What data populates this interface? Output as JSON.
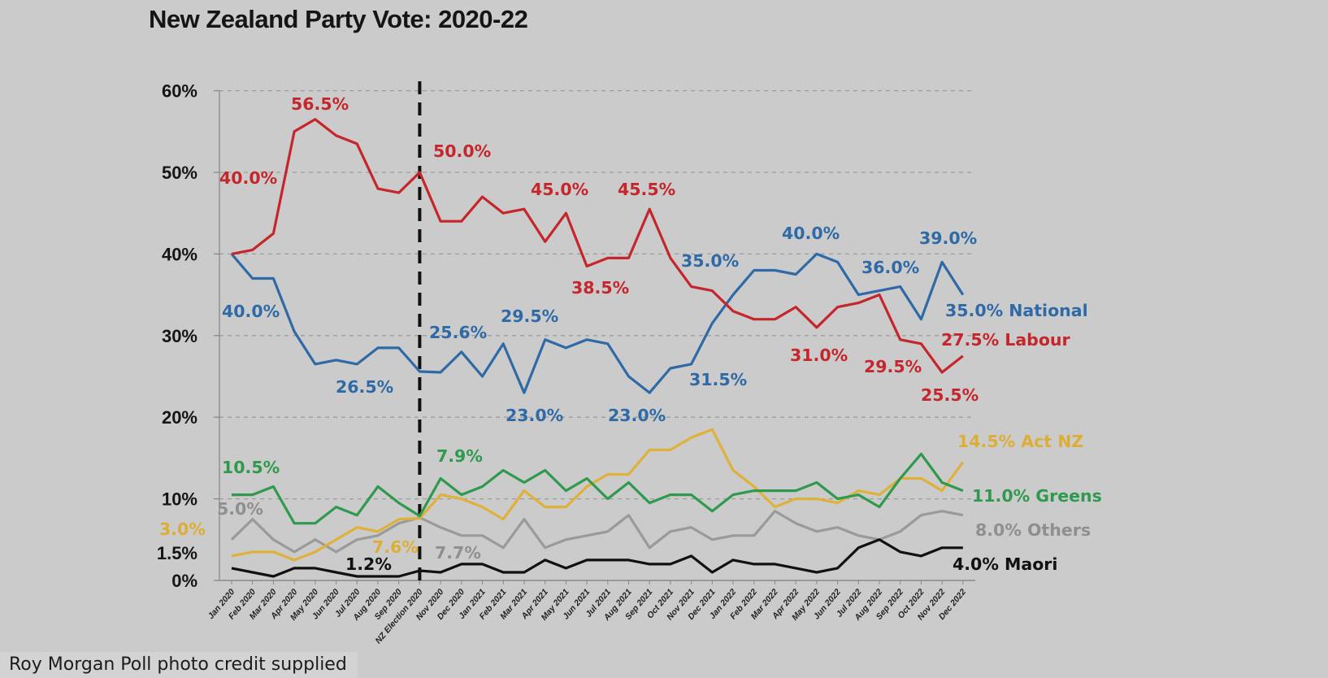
{
  "caption": "Roy Morgan Poll photo credit supplied",
  "chart_data": {
    "type": "line",
    "title": "New Zealand Party Vote: 2020-22",
    "xlabel": "",
    "ylabel": "",
    "ylim": [
      0,
      60
    ],
    "grid": true,
    "y_tick_labels": [
      "0%",
      "10%",
      "20%",
      "30%",
      "40%",
      "50%",
      "60%"
    ],
    "y_ticks": [
      0,
      10,
      20,
      30,
      40,
      50,
      60
    ],
    "extra_axis_label": "1.5%",
    "categories": [
      "Jan 2020",
      "Feb 2020",
      "Mar 2020",
      "Apr 2020",
      "May 2020",
      "Jun 2020",
      "Jul 2020",
      "Aug 2020",
      "Sep 2020",
      "NZ Election 2020",
      "Nov 2020",
      "Dec 2020",
      "Jan 2021",
      "Feb 2021",
      "Mar 2021",
      "Apr 2021",
      "May 2021",
      "Jun 2021",
      "Jul 2021",
      "Aug 2021",
      "Sep 2021",
      "Oct 2021",
      "Nov 2021",
      "Dec 2021",
      "Jan 2022",
      "Feb 2022",
      "Mar 2022",
      "Apr 2022",
      "May 2022",
      "Jun 2022",
      "Jul 2022",
      "Aug 2022",
      "Sep 2022",
      "Oct 2022",
      "Nov 2022",
      "Dec 2022"
    ],
    "vertical_marker": {
      "category_index": 9,
      "style": "dashed",
      "color": "#111111"
    },
    "series": [
      {
        "name": "Labour",
        "color": "#c4262c",
        "values": [
          40,
          40.5,
          42.5,
          55,
          56.5,
          54.5,
          53.5,
          48,
          47.5,
          50,
          44,
          44,
          47,
          45,
          45.5,
          41.5,
          45,
          38.5,
          39.5,
          39.5,
          45.5,
          39.5,
          36,
          35.5,
          33,
          32,
          32,
          33.5,
          31,
          33.5,
          34,
          35,
          29.5,
          29,
          25.5,
          27.5
        ]
      },
      {
        "name": "National",
        "color": "#2f6aa6",
        "values": [
          40,
          37,
          37,
          30.5,
          26.5,
          27,
          26.5,
          28.5,
          28.5,
          25.6,
          25.5,
          28,
          25,
          29,
          23,
          29.5,
          28.5,
          29.5,
          29,
          25,
          23,
          26,
          26.5,
          31.5,
          35,
          38,
          38,
          37.5,
          40,
          39,
          35,
          35.5,
          36,
          32,
          39,
          35
        ]
      },
      {
        "name": "Greens",
        "color": "#2f9a4e",
        "values": [
          10.5,
          10.5,
          11.5,
          7,
          7,
          9,
          8,
          11.5,
          9.5,
          7.9,
          12.5,
          10.5,
          11.5,
          13.5,
          12,
          13.5,
          11,
          12.5,
          10,
          12,
          9.5,
          10.5,
          10.5,
          8.5,
          10.5,
          11,
          11,
          11,
          12,
          10,
          10.5,
          9,
          12.5,
          15.5,
          12,
          11
        ]
      },
      {
        "name": "Act NZ",
        "color": "#e0b13a",
        "values": [
          3,
          3.5,
          3.5,
          2.5,
          3.5,
          5,
          6.5,
          6,
          7.5,
          7.6,
          10.5,
          10,
          9,
          7.5,
          11,
          9,
          9,
          11.5,
          13,
          13,
          16,
          16,
          17.5,
          18.5,
          13.5,
          11.5,
          9,
          10,
          10,
          9.5,
          11,
          10.5,
          12.5,
          12.5,
          11,
          14.5
        ]
      },
      {
        "name": "Others",
        "color": "#9a9a9a",
        "values": [
          5,
          7.5,
          5,
          3.5,
          5,
          3.5,
          5,
          5.5,
          7,
          7.7,
          6.5,
          5.5,
          5.5,
          4,
          7.5,
          4,
          5,
          5.5,
          6,
          8,
          4,
          6,
          6.5,
          5,
          5.5,
          5.5,
          8.5,
          7,
          6,
          6.5,
          5.5,
          5,
          6,
          8,
          8.5,
          8
        ]
      },
      {
        "name": "Maori",
        "color": "#111111",
        "values": [
          1.5,
          1,
          0.5,
          1.5,
          1.5,
          1,
          0.5,
          0.5,
          0.5,
          1.2,
          1,
          2,
          2,
          1,
          1,
          2.5,
          1.5,
          2.5,
          2.5,
          2.5,
          2,
          2,
          3,
          1,
          2.5,
          2,
          2,
          1.5,
          1,
          1.5,
          4,
          5,
          3.5,
          3,
          4,
          4
        ]
      }
    ],
    "annotations": [
      {
        "text": "56.5%",
        "series": "Labour"
      },
      {
        "text": "40.0%",
        "series": "Labour"
      },
      {
        "text": "50.0%",
        "series": "Labour"
      },
      {
        "text": "45.0%",
        "series": "Labour"
      },
      {
        "text": "45.5%",
        "series": "Labour"
      },
      {
        "text": "38.5%",
        "series": "Labour"
      },
      {
        "text": "31.0%",
        "series": "Labour"
      },
      {
        "text": "29.5%",
        "series": "Labour"
      },
      {
        "text": "25.5%",
        "series": "Labour"
      },
      {
        "text": "27.5% Labour",
        "series": "Labour"
      },
      {
        "text": "40.0%",
        "series": "National"
      },
      {
        "text": "26.5%",
        "series": "National"
      },
      {
        "text": "25.6%",
        "series": "National"
      },
      {
        "text": "29.5%",
        "series": "National"
      },
      {
        "text": "23.0%",
        "series": "National"
      },
      {
        "text": "23.0%",
        "series": "National"
      },
      {
        "text": "35.0%",
        "series": "National"
      },
      {
        "text": "31.5%",
        "series": "National"
      },
      {
        "text": "40.0%",
        "series": "National"
      },
      {
        "text": "36.0%",
        "series": "National"
      },
      {
        "text": "39.0%",
        "series": "National"
      },
      {
        "text": "35.0% National",
        "series": "National"
      },
      {
        "text": "10.5%",
        "series": "Greens"
      },
      {
        "text": "7.9%",
        "series": "Greens"
      },
      {
        "text": "11.0% Greens",
        "series": "Greens"
      },
      {
        "text": "3.0%",
        "series": "Act NZ"
      },
      {
        "text": "7.6%",
        "series": "Act NZ"
      },
      {
        "text": "14.5% Act NZ",
        "series": "Act NZ"
      },
      {
        "text": "5.0%",
        "series": "Others"
      },
      {
        "text": "7.7%",
        "series": "Others"
      },
      {
        "text": "8.0% Others",
        "series": "Others"
      },
      {
        "text": "1.2%",
        "series": "Maori"
      },
      {
        "text": "4.0% Maori",
        "series": "Maori"
      }
    ]
  }
}
